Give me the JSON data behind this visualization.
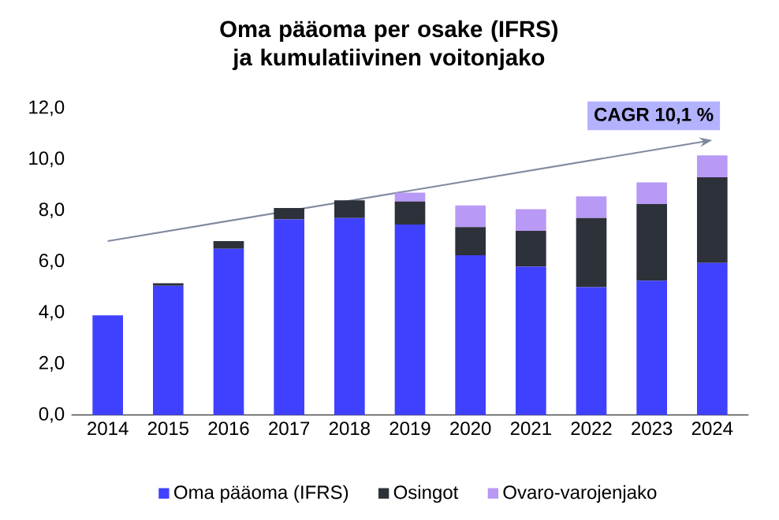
{
  "chart_data": {
    "type": "bar",
    "stacked": true,
    "title": "Oma pääoma per osake (IFRS) ja kumulatiivinen voitonjako",
    "categories": [
      "2014",
      "2015",
      "2016",
      "2017",
      "2018",
      "2019",
      "2020",
      "2021",
      "2022",
      "2023",
      "2024"
    ],
    "series": [
      {
        "name": "Oma pääoma (IFRS)",
        "color": "#4040ff",
        "values": [
          3.9,
          5.05,
          6.5,
          7.65,
          7.7,
          7.45,
          6.25,
          5.8,
          5.0,
          5.25,
          5.95
        ]
      },
      {
        "name": "Osingot",
        "color": "#2d313a",
        "values": [
          0,
          0.1,
          0.3,
          0.45,
          0.7,
          0.9,
          1.1,
          1.4,
          2.7,
          3.0,
          3.35
        ]
      },
      {
        "name": "Ovaro-varojenjako",
        "color": "#b899f5",
        "values": [
          0,
          0,
          0,
          0,
          0,
          0.35,
          0.85,
          0.85,
          0.85,
          0.85,
          0.85
        ]
      },
      {
        "type": "line",
        "values": [
          6.8,
          null,
          null,
          null,
          null,
          null,
          null,
          null,
          null,
          null,
          10.75
        ],
        "color": "#7f8aa0"
      }
    ],
    "ylim": [
      0,
      12
    ],
    "yticks": [
      {
        "value": 0,
        "label": "0,0"
      },
      {
        "value": 2,
        "label": "2,0"
      },
      {
        "value": 4,
        "label": "4,0"
      },
      {
        "value": 6,
        "label": "6,0"
      },
      {
        "value": 8,
        "label": "8,0"
      },
      {
        "value": 10,
        "label": "10,0"
      },
      {
        "value": 12,
        "label": "12,0"
      }
    ],
    "annotations": [
      "CAGR 10,1 %"
    ],
    "legend": "bottom"
  }
}
